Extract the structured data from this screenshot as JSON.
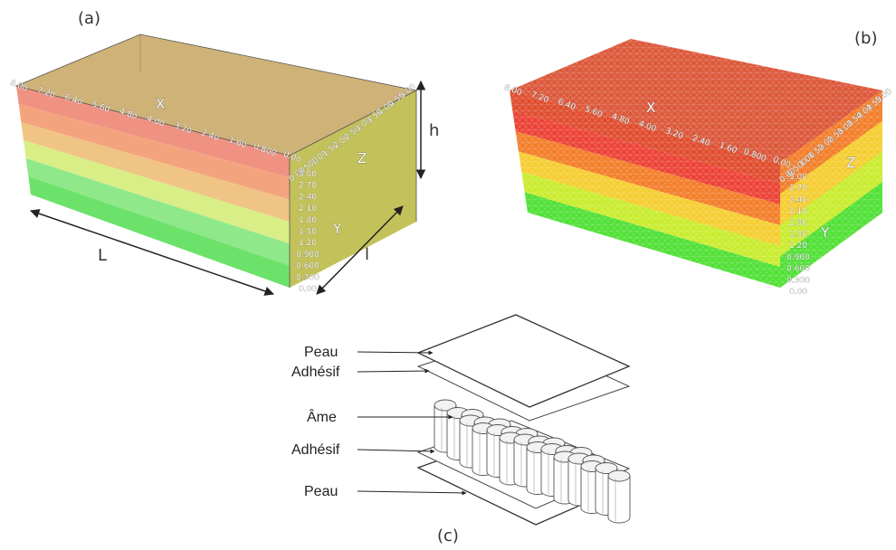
{
  "panel_labels": {
    "a": "(a)",
    "b": "(b)",
    "c": "(c)"
  },
  "axis_names": {
    "x": "X",
    "z": "Z",
    "y": "Y"
  },
  "dimension_labels": {
    "length": "L",
    "width": "l",
    "height": "h"
  },
  "x_ticks_a": [
    "8.00",
    "7.20",
    "6.40",
    "5.60",
    "4.80",
    "4.00",
    "3.20",
    "2.40",
    "1.60",
    "0.800",
    "0.00"
  ],
  "x_ticks_b": [
    "8.00",
    "7.20",
    "6.40",
    "5.60",
    "4.80",
    "4.00",
    "3.20",
    "2.40",
    "1.60",
    "0.800",
    "0.00"
  ],
  "z_ticks_a": [
    "0.00",
    "0.500",
    "1.00",
    "1.50",
    "2.00",
    "2.50",
    "3.00",
    "3.50",
    "4.00",
    "4.50",
    "5.00"
  ],
  "z_ticks_b": [
    "0.00",
    "0.500",
    "1.00",
    "1.50",
    "2.00",
    "2.50",
    "3.00",
    "3.50",
    "4.00",
    "4.50",
    "5.00"
  ],
  "y_ticks_a": [
    "0.00",
    "0.300",
    "0.600",
    "0.900",
    "1.20",
    "1.50",
    "1.80",
    "2.10",
    "2.40",
    "2.70",
    "3.00"
  ],
  "y_ticks_b": [
    "0.00",
    "0.300",
    "0.600",
    "0.900",
    "1.20",
    "1.50",
    "1.80",
    "2.10",
    "2.40",
    "2.70",
    "3.00"
  ],
  "layers_a": [
    "#f09282",
    "#f3a47e",
    "#f0c484",
    "#d9ee86",
    "#8fe88a",
    "#6ce26a"
  ],
  "layers_b": [
    "#e04b2c",
    "#ec4034",
    "#f37d28",
    "#f5cd2f",
    "#c9ec2c",
    "#4fe034"
  ],
  "sandwich_labels": [
    "Peau",
    "Adhésif",
    "Âme",
    "Adhésif",
    "Peau"
  ],
  "colors": {
    "box_a_top": "#c7a45f",
    "box_a_right": "#bcbb48",
    "box_b_top": "#dc5638",
    "box_b_right": "#d6b32c",
    "line": "#333333"
  }
}
